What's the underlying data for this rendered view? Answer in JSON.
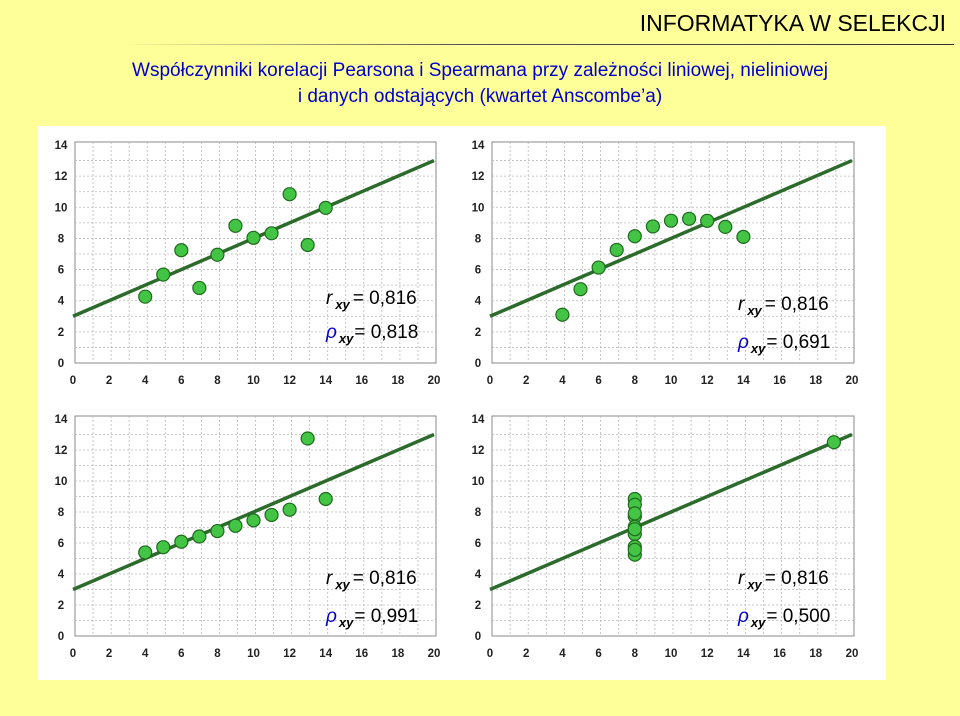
{
  "header": {
    "title": "INFORMATYKA W SELEKCJI"
  },
  "slide": {
    "title_line1": "Współczynniki korelacji Pearsona i Spearmana przy zależności liniowej, nieliniowej",
    "title_line2": "i danych odstających (kwartet Anscombe’a)"
  },
  "colors": {
    "background": "#ffff99",
    "title": "#0000cc",
    "point_fill": "#44c444",
    "point_stroke": "#1e6a1e",
    "line": "#2d6b2d",
    "grid": "#b8b8b8",
    "rho": "#0000cc"
  },
  "chart_data": [
    {
      "type": "scatter",
      "title": "",
      "xlabel": "",
      "ylabel": "",
      "xlim": [
        0,
        20
      ],
      "ylim": [
        0,
        14
      ],
      "xticks": [
        0,
        2,
        4,
        6,
        8,
        10,
        12,
        14,
        16,
        18,
        20
      ],
      "yticks": [
        0,
        2,
        4,
        6,
        8,
        10,
        12,
        14
      ],
      "grid": true,
      "points": [
        [
          10,
          8.04
        ],
        [
          8,
          6.95
        ],
        [
          13,
          7.58
        ],
        [
          9,
          8.81
        ],
        [
          11,
          8.33
        ],
        [
          14,
          9.96
        ],
        [
          6,
          7.24
        ],
        [
          4,
          4.26
        ],
        [
          12,
          10.84
        ],
        [
          7,
          4.82
        ],
        [
          5,
          5.68
        ]
      ],
      "fit_line": {
        "intercept": 3.0,
        "slope": 0.5
      },
      "r_label": "r",
      "r_sub": "xy",
      "r_value": "= 0,816",
      "rho_label": "ρ",
      "rho_sub": "xy",
      "rho_value": "= 0,818"
    },
    {
      "type": "scatter",
      "title": "",
      "xlabel": "",
      "ylabel": "",
      "xlim": [
        0,
        20
      ],
      "ylim": [
        0,
        14
      ],
      "xticks": [
        0,
        2,
        4,
        6,
        8,
        10,
        12,
        14,
        16,
        18,
        20
      ],
      "yticks": [
        0,
        2,
        4,
        6,
        8,
        10,
        12,
        14
      ],
      "grid": true,
      "points": [
        [
          10,
          9.14
        ],
        [
          8,
          8.14
        ],
        [
          13,
          8.74
        ],
        [
          9,
          8.77
        ],
        [
          11,
          9.26
        ],
        [
          14,
          8.1
        ],
        [
          6,
          6.13
        ],
        [
          4,
          3.1
        ],
        [
          12,
          9.13
        ],
        [
          7,
          7.26
        ],
        [
          5,
          4.74
        ]
      ],
      "fit_line": {
        "intercept": 3.0,
        "slope": 0.5
      },
      "r_label": "r",
      "r_sub": "xy",
      "r_value": "= 0,816",
      "rho_label": "ρ",
      "rho_sub": "xy",
      "rho_value": "= 0,691"
    },
    {
      "type": "scatter",
      "title": "",
      "xlabel": "",
      "ylabel": "",
      "xlim": [
        0,
        20
      ],
      "ylim": [
        0,
        14
      ],
      "xticks": [
        0,
        2,
        4,
        6,
        8,
        10,
        12,
        14,
        16,
        18,
        20
      ],
      "yticks": [
        0,
        2,
        4,
        6,
        8,
        10,
        12,
        14
      ],
      "grid": true,
      "points": [
        [
          10,
          7.46
        ],
        [
          8,
          6.77
        ],
        [
          13,
          12.74
        ],
        [
          9,
          7.11
        ],
        [
          11,
          7.81
        ],
        [
          14,
          8.84
        ],
        [
          6,
          6.08
        ],
        [
          4,
          5.39
        ],
        [
          12,
          8.15
        ],
        [
          7,
          6.42
        ],
        [
          5,
          5.73
        ]
      ],
      "fit_line": {
        "intercept": 3.0,
        "slope": 0.5
      },
      "r_label": "r",
      "r_sub": "xy",
      "r_value": "= 0,816",
      "rho_label": "ρ",
      "rho_sub": "xy",
      "rho_value": "= 0,991"
    },
    {
      "type": "scatter",
      "title": "",
      "xlabel": "",
      "ylabel": "",
      "xlim": [
        0,
        20
      ],
      "ylim": [
        0,
        14
      ],
      "xticks": [
        0,
        2,
        4,
        6,
        8,
        10,
        12,
        14,
        16,
        18,
        20
      ],
      "yticks": [
        0,
        2,
        4,
        6,
        8,
        10,
        12,
        14
      ],
      "grid": true,
      "points": [
        [
          8,
          6.58
        ],
        [
          8,
          5.76
        ],
        [
          8,
          7.71
        ],
        [
          8,
          8.84
        ],
        [
          8,
          8.47
        ],
        [
          8,
          7.04
        ],
        [
          8,
          5.25
        ],
        [
          19,
          12.5
        ],
        [
          8,
          5.56
        ],
        [
          8,
          7.91
        ],
        [
          8,
          6.89
        ]
      ],
      "fit_line": {
        "intercept": 3.0,
        "slope": 0.5
      },
      "r_label": "r",
      "r_sub": "xy",
      "r_value": "= 0,816",
      "rho_label": "ρ",
      "rho_sub": "xy",
      "rho_value": "= 0,500"
    }
  ]
}
